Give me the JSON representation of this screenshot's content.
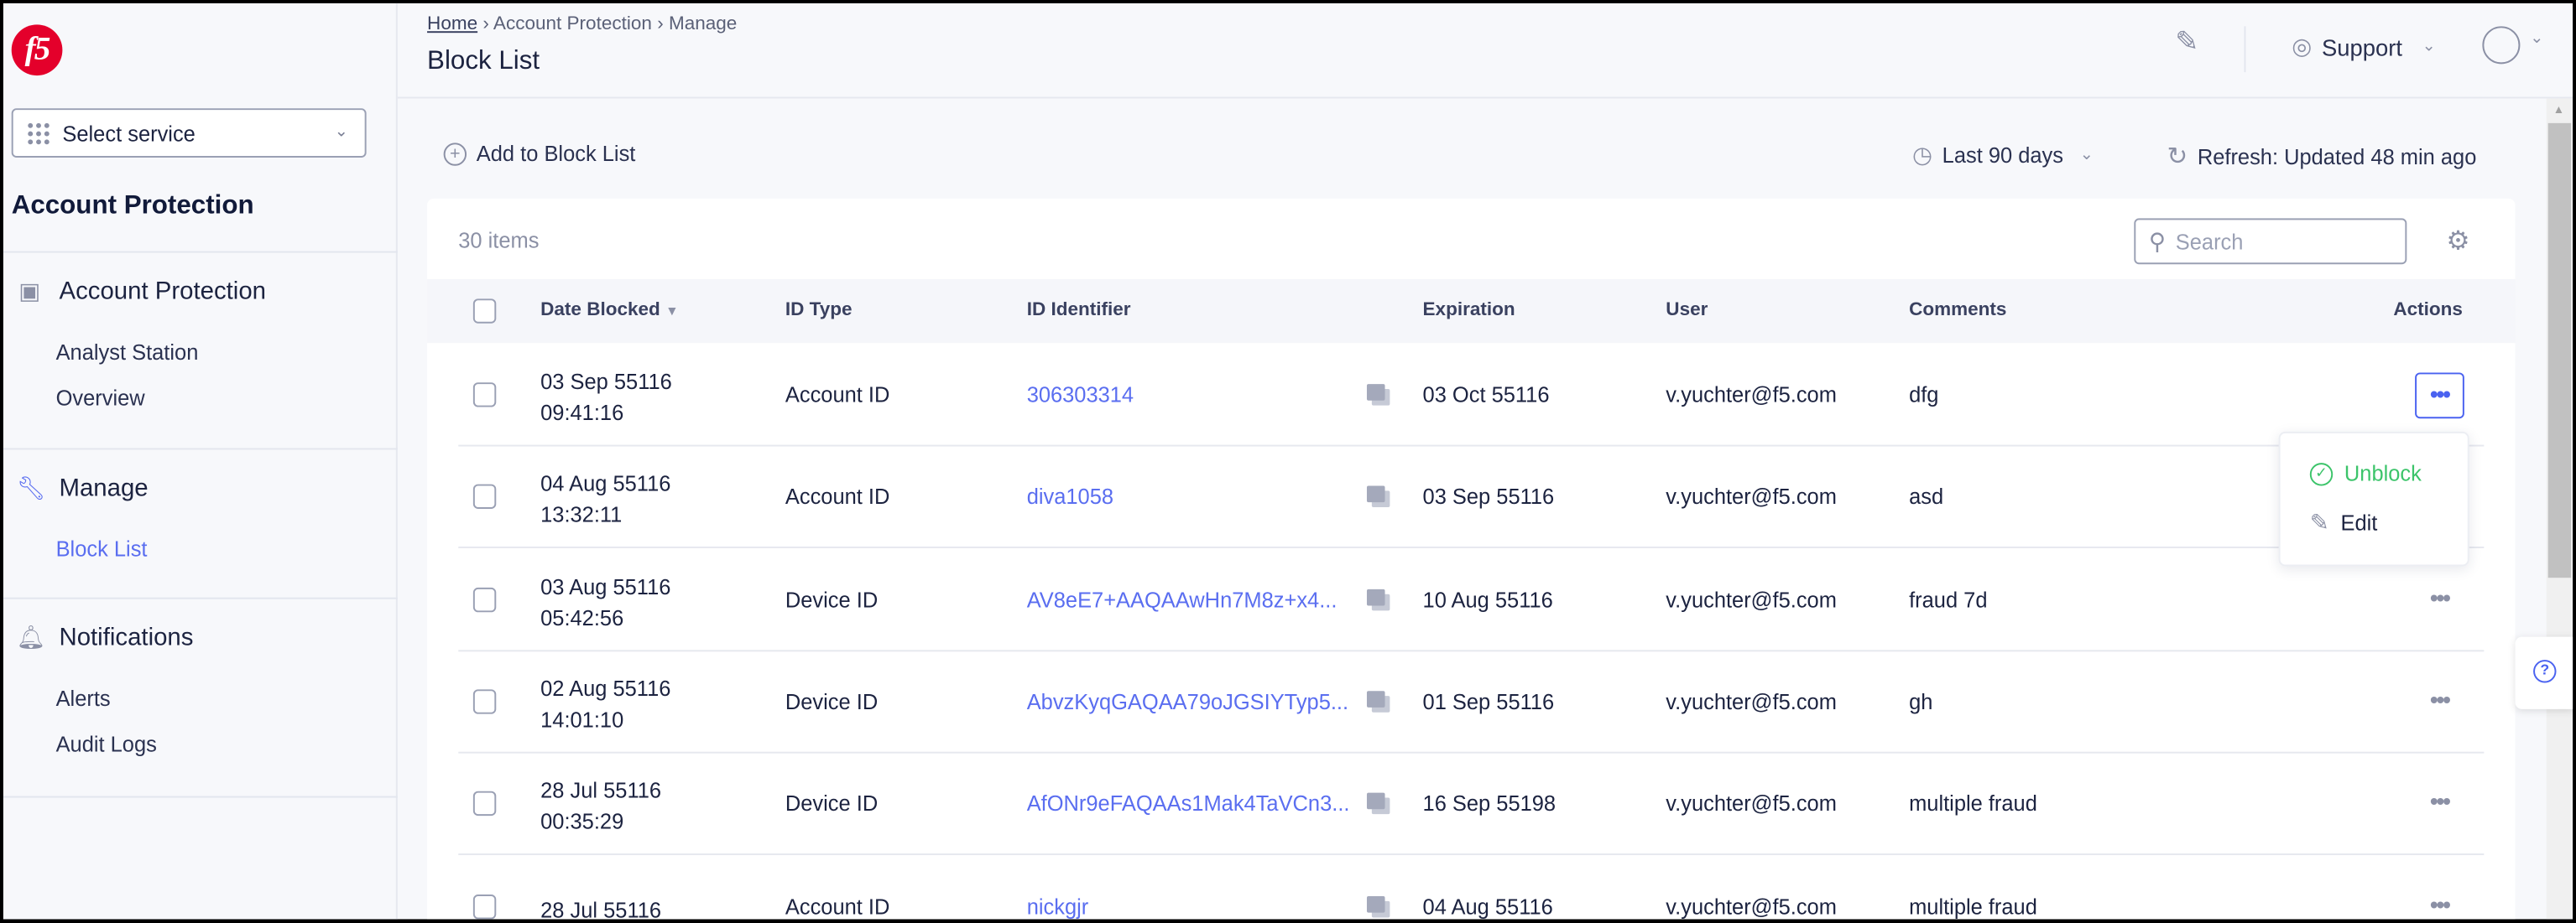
{
  "brand": {
    "logo_text": "f5",
    "logo_color": "#e4002b"
  },
  "sidebar": {
    "select_service": "Select service",
    "title": "Account Protection",
    "sections": [
      {
        "label": "Account Protection",
        "icon": "dashboard-icon",
        "items": [
          {
            "label": "Analyst Station"
          },
          {
            "label": "Overview"
          }
        ]
      },
      {
        "label": "Manage",
        "icon": "wrench-icon",
        "items": [
          {
            "label": "Block List",
            "active": true
          }
        ]
      },
      {
        "label": "Notifications",
        "icon": "bell-icon",
        "items": [
          {
            "label": "Alerts"
          },
          {
            "label": "Audit Logs"
          }
        ]
      }
    ]
  },
  "header": {
    "breadcrumb": [
      "Home",
      "Account Protection",
      "Manage"
    ],
    "title": "Block List",
    "support": "Support"
  },
  "toolbar": {
    "add": "Add to Block List",
    "range": "Last 90 days",
    "refresh": "Refresh: Updated 48 min ago"
  },
  "table": {
    "count": "30 items",
    "search_placeholder": "Search",
    "columns": [
      "Date Blocked",
      "ID Type",
      "ID Identifier",
      "Expiration",
      "User",
      "Comments",
      "Actions"
    ],
    "rows": [
      {
        "date": "03 Sep 55116",
        "time": "09:41:16",
        "type": "Account ID",
        "id": "306303314",
        "exp": "03 Oct 55116",
        "user": "v.yuchter@f5.com",
        "comment": "dfg"
      },
      {
        "date": "04 Aug 55116",
        "time": "13:32:11",
        "type": "Account ID",
        "id": "diva1058",
        "exp": "03 Sep 55116",
        "user": "v.yuchter@f5.com",
        "comment": "asd"
      },
      {
        "date": "03 Aug 55116",
        "time": "05:42:56",
        "type": "Device ID",
        "id": "AV8eE7+AAQAAwHn7M8z+x4...",
        "exp": "10 Aug 55116",
        "user": "v.yuchter@f5.com",
        "comment": "fraud 7d"
      },
      {
        "date": "02 Aug 55116",
        "time": "14:01:10",
        "type": "Device ID",
        "id": "AbvzKyqGAQAA79oJGSIYTyp5...",
        "exp": "01 Sep 55116",
        "user": "v.yuchter@f5.com",
        "comment": "gh"
      },
      {
        "date": "28 Jul 55116",
        "time": "00:35:29",
        "type": "Device ID",
        "id": "AfONr9eFAQAAs1Mak4TaVCn3...",
        "exp": "16 Sep 55198",
        "user": "v.yuchter@f5.com",
        "comment": "multiple fraud"
      },
      {
        "date": "28 Jul 55116",
        "type": "Account ID",
        "id": "nickgjr",
        "exp": "04 Aug 55116",
        "user": "v.yuchter@f5.com",
        "comment": "multiple fraud"
      }
    ]
  },
  "action_menu": {
    "unblock": "Unblock",
    "edit": "Edit",
    "unblock_color": "#3cc46a"
  },
  "colors": {
    "accent": "#5a6ef0"
  }
}
